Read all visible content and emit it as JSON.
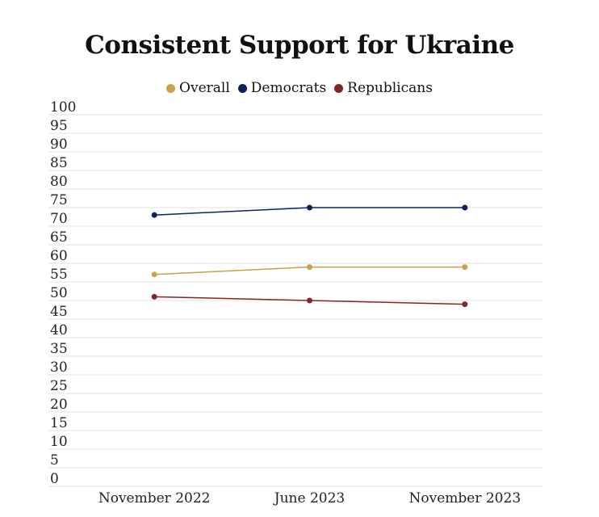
{
  "chart_data": {
    "type": "line",
    "title": "Consistent Support for Ukraine",
    "categories": [
      "November 2022",
      "June 2023",
      "November 2023"
    ],
    "yticks": [
      0,
      5,
      10,
      15,
      20,
      25,
      30,
      35,
      40,
      45,
      50,
      55,
      60,
      65,
      70,
      75,
      80,
      85,
      90,
      95,
      100
    ],
    "ylim": [
      0,
      100
    ],
    "grid": true,
    "legend_position": "top",
    "series": [
      {
        "name": "Overall",
        "color": "#c9a24a",
        "values": [
          57,
          59,
          59
        ]
      },
      {
        "name": "Democrats",
        "color": "#0d2260",
        "values": [
          73,
          75,
          75
        ]
      },
      {
        "name": "Republicans",
        "color": "#822626",
        "values": [
          51,
          50,
          49
        ]
      }
    ]
  }
}
